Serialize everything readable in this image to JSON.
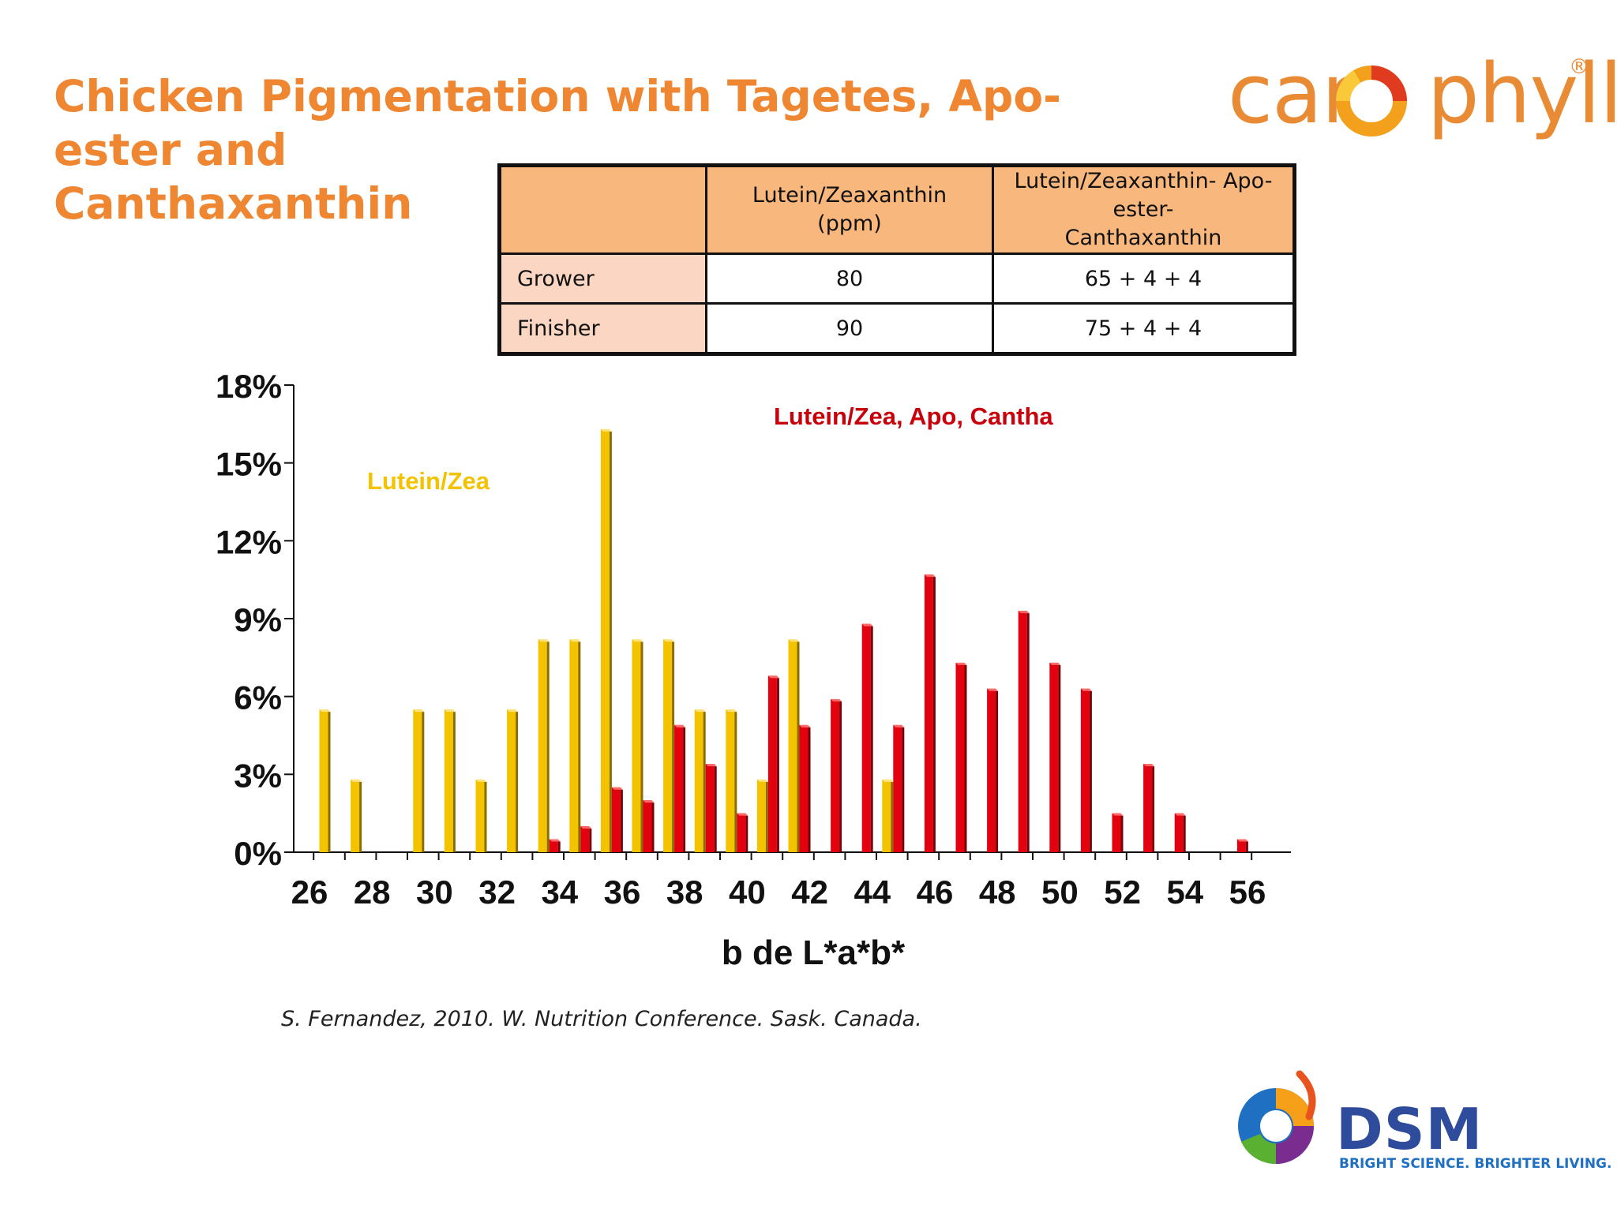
{
  "slide": {
    "title_line1": "Chicken Pigmentation with Tagetes, Apo-ester and",
    "title_line2": "Canthaxanthin",
    "citation": "S. Fernandez, 2010. W. Nutrition Conference. Sask. Canada."
  },
  "logo_top": {
    "text": "carophyll",
    "left": "car",
    "right": "phyll",
    "registered": "®",
    "color": "#e98a35"
  },
  "logo_bottom": {
    "name": "DSM",
    "tagline": "BRIGHT SCIENCE. BRIGHTER LIVING.",
    "color": "#2f4b9c"
  },
  "dose_table": {
    "headers": [
      "",
      "Lutein/Zeaxanthin (ppm)",
      "Lutein/Zeaxanthin- Apo-ester-Canthaxanthin"
    ],
    "header_1_line1": "Lutein/Zeaxanthin",
    "header_1_line2": "(ppm)",
    "header_2_line1": "Lutein/Zeaxanthin- Apo-ester-",
    "header_2_line2": "Canthaxanthin",
    "rows": [
      {
        "label": "Grower",
        "lutein": "80",
        "combo": "65 + 4 + 4"
      },
      {
        "label": "Finisher",
        "lutein": "90",
        "combo": "75 + 4 + 4"
      }
    ]
  },
  "chart_data": {
    "type": "bar",
    "title": "",
    "xlabel": "b  de L*a*b*",
    "ylabel": "",
    "ylim": [
      0,
      18
    ],
    "yticks": [
      "0%",
      "3%",
      "6%",
      "9%",
      "12%",
      "15%",
      "18%"
    ],
    "xtick_labels": [
      "26",
      "28",
      "30",
      "32",
      "34",
      "36",
      "38",
      "40",
      "42",
      "44",
      "46",
      "48",
      "50",
      "52",
      "54",
      "56"
    ],
    "categories": [
      27,
      28,
      29,
      30,
      31,
      32,
      33,
      34,
      35,
      36,
      37,
      38,
      39,
      40,
      41,
      42,
      43,
      44,
      45,
      46,
      47,
      48,
      49,
      50,
      51,
      52,
      53,
      54,
      55,
      56
    ],
    "series": [
      {
        "name": "Lutein/Zea",
        "color": "#f3c300",
        "values": [
          5.5,
          2.8,
          0,
          5.5,
          5.5,
          2.8,
          5.5,
          8.2,
          8.2,
          16.3,
          8.2,
          8.2,
          5.5,
          5.5,
          2.8,
          8.2,
          0,
          0,
          2.8,
          0,
          0,
          0,
          0,
          0,
          0,
          0,
          0,
          0,
          0,
          0
        ]
      },
      {
        "name": "Lutein/Zea, Apo, Cantha",
        "color": "#e3000f",
        "values": [
          0,
          0,
          0,
          0,
          0,
          0,
          0,
          0.5,
          1.0,
          2.5,
          2.0,
          4.9,
          3.4,
          1.5,
          6.8,
          4.9,
          5.9,
          8.8,
          4.9,
          10.7,
          7.3,
          6.3,
          9.3,
          7.3,
          6.3,
          1.5,
          3.4,
          1.5,
          0,
          0.5
        ]
      }
    ],
    "grid": false,
    "legend": "annotations inside plot"
  }
}
